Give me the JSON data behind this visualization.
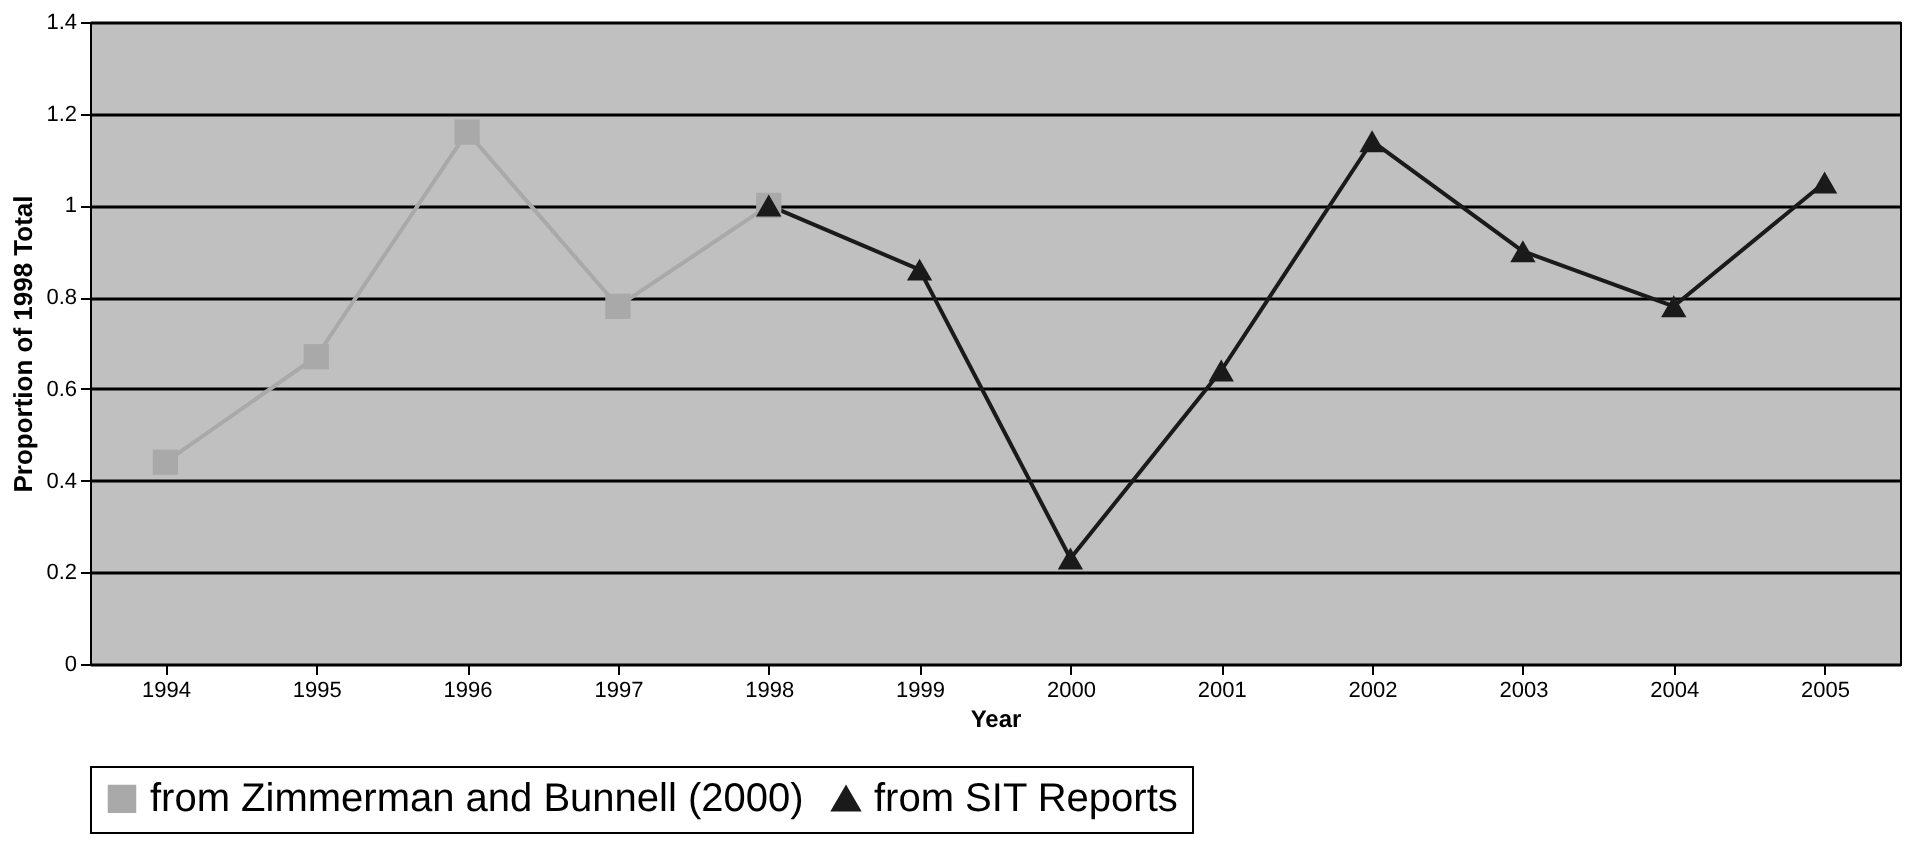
{
  "chart_data": {
    "type": "line",
    "xlabel": "Year",
    "ylabel": "Proportion of 1998 Total",
    "categories": [
      "1994",
      "1995",
      "1996",
      "1997",
      "1998",
      "1999",
      "2000",
      "2001",
      "2002",
      "2003",
      "2004",
      "2005"
    ],
    "series": [
      {
        "name": "from Zimmerman and Bunnell (2000)",
        "color": "#a9a9a9",
        "marker": "square",
        "values": [
          0.44,
          0.67,
          1.16,
          0.78,
          1.0,
          null,
          null,
          null,
          null,
          null,
          null,
          null
        ]
      },
      {
        "name": "from SIT Reports",
        "color": "#1a1a1a",
        "marker": "triangle",
        "values": [
          null,
          null,
          null,
          null,
          1.0,
          0.86,
          0.23,
          0.64,
          1.14,
          0.9,
          0.78,
          1.05
        ]
      }
    ],
    "ylim": [
      0,
      1.4
    ],
    "yticks": [
      0,
      0.2,
      0.4,
      0.6,
      0.8,
      1,
      1.2,
      1.4
    ],
    "grid": "y",
    "legend": "bottom",
    "line_style": "solid"
  }
}
